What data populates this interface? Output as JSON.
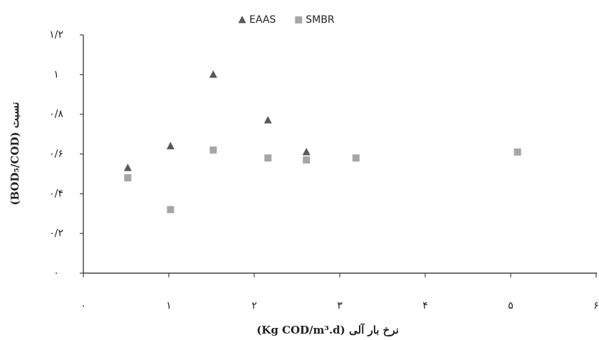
{
  "chart_data": {
    "type": "scatter",
    "x_label": "(Kg COD/m³.d) نرخ بار آلی",
    "y_label": "(BOD₅/COD) نسبت",
    "series": [
      {
        "name": "EAAS",
        "color": "#595959",
        "marker": "triangle",
        "x": [
          0.52,
          1.02,
          1.52,
          2.16,
          2.61
        ],
        "values": [
          0.53,
          0.64,
          1.0,
          0.77,
          0.61
        ]
      },
      {
        "name": "SMBR",
        "color": "#a6a6a6",
        "marker": "square",
        "x": [
          0.52,
          1.02,
          1.52,
          2.16,
          2.61,
          3.19,
          5.08
        ],
        "values": [
          0.48,
          0.32,
          0.62,
          0.58,
          0.57,
          0.58,
          0.61
        ]
      }
    ],
    "xlim": [
      0,
      6
    ],
    "xticks": [
      {
        "value": 0,
        "label": "۰"
      },
      {
        "value": 1,
        "label": "۱"
      },
      {
        "value": 2,
        "label": "۲"
      },
      {
        "value": 3,
        "label": "۳"
      },
      {
        "value": 4,
        "label": "۴"
      },
      {
        "value": 5,
        "label": "۵"
      },
      {
        "value": 6,
        "label": "۶"
      }
    ],
    "ylim": [
      0,
      1.2
    ],
    "yticks": [
      {
        "value": 0,
        "label": "۰"
      },
      {
        "value": 0.2,
        "label": "۰/۲"
      },
      {
        "value": 0.4,
        "label": "۰/۴"
      },
      {
        "value": 0.6,
        "label": "۰/۶"
      },
      {
        "value": 0.8,
        "label": "۰/۸"
      },
      {
        "value": 1,
        "label": "۱"
      },
      {
        "value": 1.2,
        "label": "۱/۲"
      }
    ],
    "legend": "top",
    "grid": false
  }
}
